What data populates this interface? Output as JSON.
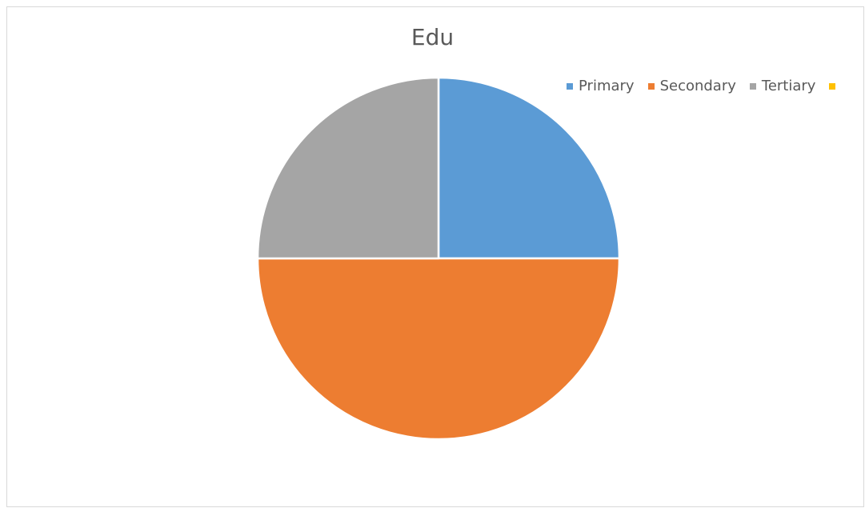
{
  "chart_data": {
    "type": "pie",
    "title": "Edu",
    "categories": [
      "Primary",
      "Secondary",
      "Tertiary",
      ""
    ],
    "values": [
      25,
      50,
      25,
      0
    ],
    "colors": [
      "#5b9bd5",
      "#ed7d31",
      "#a5a5a5",
      "#ffc000"
    ],
    "legend_position": "top-right"
  }
}
